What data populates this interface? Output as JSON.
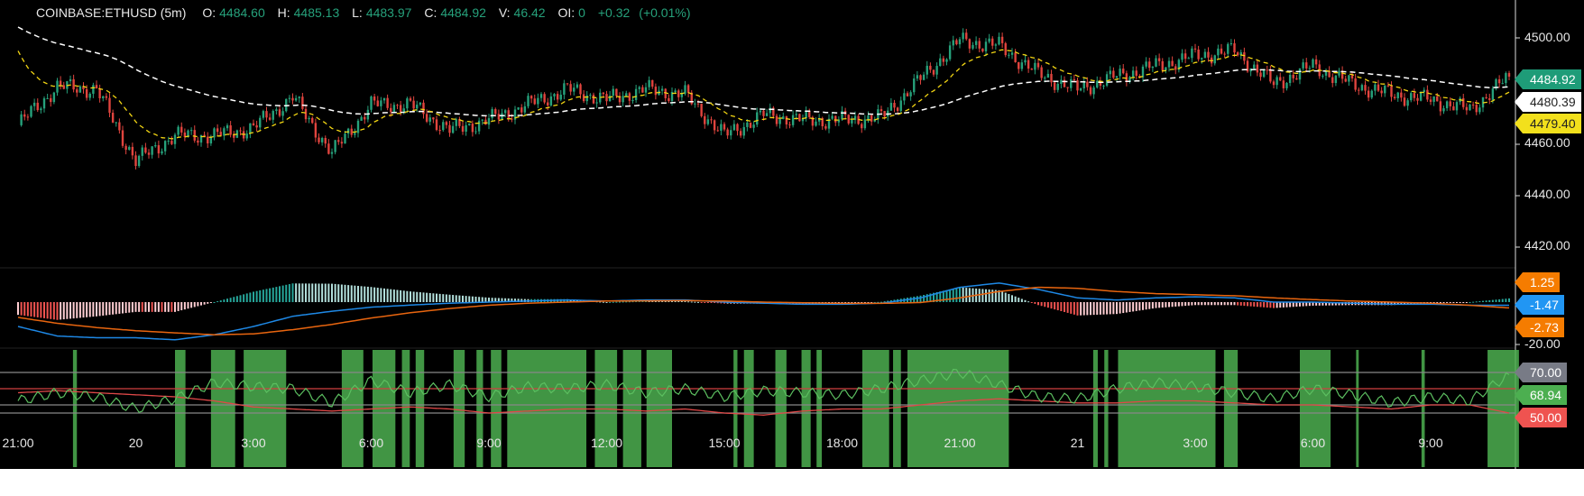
{
  "header": {
    "symbol": "COINBASE:ETHUSD (5m)",
    "open_label": "O:",
    "open": "4484.60",
    "high_label": "H:",
    "high": "4485.13",
    "low_label": "L:",
    "low": "4483.97",
    "close_label": "C:",
    "close": "4484.92",
    "volume_label": "V:",
    "volume": "46.42",
    "oi_label": "OI:",
    "oi": "0",
    "change": "+0.32",
    "change_pct": "(+0.01%)"
  },
  "colors": {
    "up": "#26a17b",
    "down": "#e0443e",
    "fast_ma": "#f2d513",
    "slow_ma": "#ffffff",
    "macd": "#1e88e5",
    "signal": "#e8650f",
    "rsi": "#4caf50",
    "rsi_ma": "#e04848",
    "band": "#4caf50"
  },
  "chart_data": [
    {
      "type": "candlestick",
      "title": "COINBASE:ETHUSD (5m)",
      "interval": "5m",
      "x_ticks": [
        "21:00",
        "20",
        "3:00",
        "6:00",
        "9:00",
        "12:00",
        "15:00",
        "18:00",
        "21:00",
        "21",
        "3:00",
        "6:00",
        "9:00"
      ],
      "y_ticks": [
        "4500.00",
        "4460.00",
        "4440.00",
        "4420.00"
      ],
      "ylim": [
        4412,
        4514
      ],
      "hourly_close_from_19_21h00": [
        4466,
        4481,
        4480,
        4452,
        4462,
        4462,
        4465,
        4477,
        4455,
        4474,
        4474,
        4464,
        4468,
        4474,
        4480,
        4476,
        4480,
        4478,
        4462,
        4470,
        4468,
        4468,
        4469,
        4484,
        4499,
        4497,
        4486,
        4480,
        4485,
        4489,
        4493,
        4495,
        4482,
        4489,
        4482,
        4478,
        4476,
        4472,
        4484.92
      ],
      "last_price": "4484.92",
      "moving_averages": [
        {
          "style": "dashed",
          "color": "#ffffff",
          "last": "4480.39"
        },
        {
          "style": "dashed",
          "color": "#f2d513",
          "last": "4479.40"
        }
      ]
    },
    {
      "type": "line",
      "indicator": "MACD",
      "y_ticks": [
        "-20.00"
      ],
      "macd_hourly": [
        -11.5,
        -16,
        -16.8,
        -16.8,
        -17.8,
        -15.4,
        -11.5,
        -6.7,
        -4.3,
        -2.4,
        -1.4,
        -0.5,
        0,
        0.5,
        1,
        0.5,
        1,
        1,
        0,
        -0.5,
        -1,
        -1,
        -0.5,
        2,
        7,
        9,
        6,
        2,
        1,
        2,
        2.5,
        2,
        0,
        0,
        -0.5,
        -1,
        -1,
        -1.5,
        -1.47
      ],
      "signal_hourly": [
        -7.2,
        -10,
        -12,
        -13.5,
        -14.5,
        -15.4,
        -15,
        -13,
        -10.5,
        -7.5,
        -5,
        -3,
        -1.5,
        -0.5,
        0,
        0.5,
        0.6,
        0.7,
        0.5,
        0,
        -0.3,
        -0.6,
        -0.6,
        -0.2,
        2,
        5,
        7,
        6.5,
        5,
        4,
        3.5,
        3,
        2,
        1.2,
        0.5,
        0,
        -0.5,
        -1.5,
        -2.73
      ],
      "labels": {
        "histogram": "1.25",
        "macd": "-1.47",
        "signal": "-2.73"
      }
    },
    {
      "type": "line",
      "indicator": "RSI",
      "levels": [
        70,
        62,
        54,
        50
      ],
      "rsi_hourly": [
        56,
        60,
        58,
        52,
        57,
        65,
        63,
        62,
        55,
        66,
        60,
        64,
        58,
        63,
        62,
        64,
        60,
        62,
        58,
        61,
        60,
        59,
        62,
        66,
        70,
        64,
        58,
        57,
        62,
        65,
        63,
        60,
        57,
        62,
        59,
        55,
        58,
        56,
        68.94
      ],
      "rsi_ma_hourly": [
        60,
        61,
        60,
        59,
        58,
        56,
        53,
        52,
        51,
        52,
        53,
        52,
        50,
        51,
        52,
        52,
        51,
        52,
        50,
        49,
        51,
        52,
        52,
        54,
        56,
        57,
        56,
        55,
        55,
        56,
        56,
        55,
        54,
        54,
        53,
        52,
        54,
        54,
        50
      ],
      "labels": {
        "level": "70.00",
        "rsi": "68.94",
        "rsi_ma": "50.00"
      },
      "highlight_bands": [
        [
          "19 22:24",
          "19 22:30"
        ],
        [
          "20 01:00",
          "20 01:16"
        ],
        [
          "20 01:55",
          "20 02:32"
        ],
        [
          "20 02:45",
          "20 03:50"
        ],
        [
          "20 05:15",
          "20 05:48"
        ],
        [
          "20 06:02",
          "20 06:37"
        ],
        [
          "20 06:47",
          "20 06:59"
        ],
        [
          "20 07:08",
          "20 07:21"
        ],
        [
          "20 08:06",
          "20 08:23"
        ],
        [
          "20 08:41",
          "20 08:51"
        ],
        [
          "20 09:03",
          "20 09:19"
        ],
        [
          "20 09:28",
          "20 11:29"
        ],
        [
          "20 11:42",
          "20 12:16"
        ],
        [
          "20 12:25",
          "20 12:53"
        ],
        [
          "20 13:01",
          "20 13:40"
        ],
        [
          "20 15:14",
          "20 15:20"
        ],
        [
          "20 15:30",
          "20 15:45"
        ],
        [
          "20 16:18",
          "20 16:35"
        ],
        [
          "20 16:58",
          "20 17:12"
        ],
        [
          "20 17:21",
          "20 17:29"
        ],
        [
          "20 18:31",
          "20 19:12"
        ],
        [
          "20 19:18",
          "20 19:30"
        ],
        [
          "20 19:40",
          "20 22:15"
        ],
        [
          "21 00:24",
          "21 00:31"
        ],
        [
          "21 00:41",
          "21 00:47"
        ],
        [
          "21 01:02",
          "21 03:31"
        ],
        [
          "21 03:44",
          "21 04:05"
        ],
        [
          "21 05:40",
          "21 06:27"
        ],
        [
          "21 07:06",
          "21 07:10"
        ],
        [
          "21 08:46",
          "21 08:51"
        ],
        [
          "21 10:27",
          "21 11:15"
        ]
      ]
    }
  ]
}
